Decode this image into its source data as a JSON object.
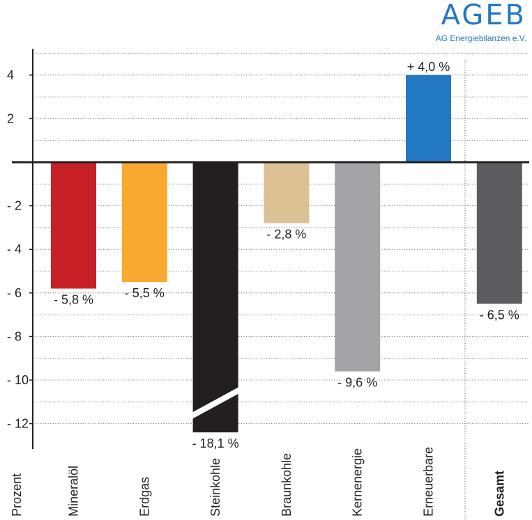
{
  "logo": {
    "name": "AGEB",
    "subtitle": "AG Energiebilanzen e.V."
  },
  "chart_data": {
    "type": "bar",
    "ylabel": "Prozent",
    "ylim": [
      -12.6,
      5.2
    ],
    "yticks": [
      4,
      2,
      -2,
      -4,
      -6,
      -8,
      -10,
      -12
    ],
    "ytick_labels": [
      "4",
      "2",
      "- 2",
      "- 4",
      "- 6",
      "- 8",
      "- 10",
      "- 12"
    ],
    "grid": "dotted horizontal",
    "broken_axis": "Steinkohle",
    "categories": [
      "Mineralöl",
      "Erdgas",
      "Steinkohle",
      "Braunkohle",
      "Kernenergie",
      "Erneuerbare",
      "Gesamt"
    ],
    "values": [
      -5.8,
      -5.5,
      -18.1,
      -2.8,
      -9.6,
      4.0,
      -6.5
    ],
    "value_labels": [
      "- 5,8 %",
      "- 5,5 %",
      "- 18,1 %",
      "- 2,8 %",
      "- 9,6 %",
      "+ 4,0 %",
      "- 6,5 %"
    ],
    "colors": [
      "#c72027",
      "#f9a830",
      "#231f20",
      "#dcc195",
      "#a4a4a6",
      "#2378c4",
      "#5c5c60"
    ]
  }
}
